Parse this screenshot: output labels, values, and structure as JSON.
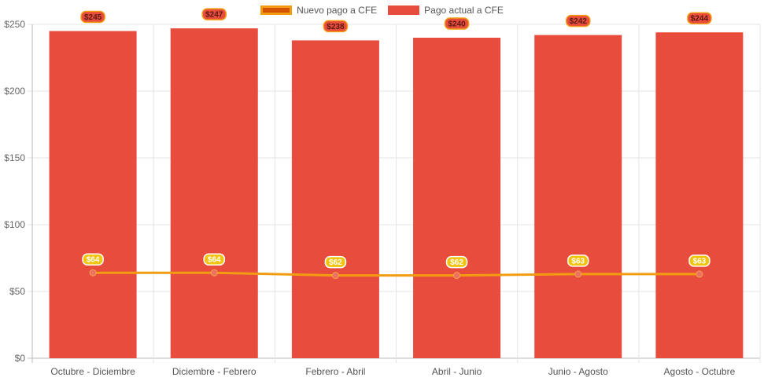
{
  "chart_data": {
    "type": "bar",
    "categories": [
      "Octubre - Diciembre",
      "Diciembre - Febrero",
      "Febrero - Abril",
      "Abril - Junio",
      "Junio - Agosto",
      "Agosto - Octubre"
    ],
    "series": [
      {
        "name": "Nuevo pago a CFE",
        "type": "line",
        "values": [
          64,
          64,
          62,
          62,
          63,
          63
        ],
        "color": "#f39c12",
        "point_color": "#ec7063",
        "labels": [
          "$64",
          "$64",
          "$62",
          "$62",
          "$63",
          "$63"
        ]
      },
      {
        "name": "Pago actual a CFE",
        "type": "bar",
        "values": [
          245,
          247,
          238,
          240,
          242,
          244
        ],
        "color": "#e74c3c",
        "labels": [
          "$245",
          "$247",
          "$238",
          "$240",
          "$242",
          "$244"
        ]
      }
    ],
    "ylim": [
      0,
      250
    ],
    "yticks": [
      0,
      50,
      100,
      150,
      200,
      250
    ],
    "ytick_labels": [
      "$0",
      "$50",
      "$100",
      "$150",
      "$200",
      "$250"
    ],
    "grid": true,
    "legend_position": "top-center"
  }
}
